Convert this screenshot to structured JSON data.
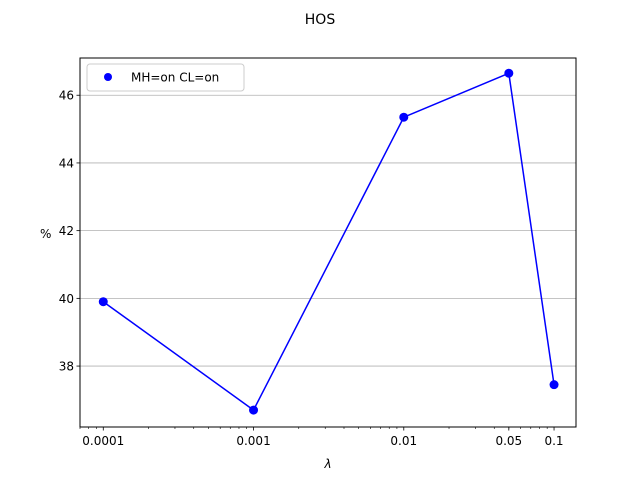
{
  "chart_data": {
    "type": "line",
    "title": "HOS",
    "xlabel": "λ",
    "ylabel": "%",
    "x_scale": "log",
    "xlim": [
      7e-05,
      0.14
    ],
    "ylim": [
      36.2,
      47.1
    ],
    "x_ticks": [
      {
        "value": 0.0001,
        "label": "0.0001"
      },
      {
        "value": 0.001,
        "label": "0.001"
      },
      {
        "value": 0.01,
        "label": "0.01"
      },
      {
        "value": 0.05,
        "label": "0.05"
      },
      {
        "value": 0.1,
        "label": "0.1"
      }
    ],
    "y_ticks": [
      {
        "value": 38,
        "label": "38"
      },
      {
        "value": 40,
        "label": "40"
      },
      {
        "value": 42,
        "label": "42"
      },
      {
        "value": 44,
        "label": "44"
      },
      {
        "value": 46,
        "label": "46"
      }
    ],
    "grid": "y-major",
    "legend_position": "top-left",
    "series": [
      {
        "name": "MH=on CL=on",
        "color": "#0000ff",
        "marker": "circle",
        "x": [
          0.0001,
          0.001,
          0.01,
          0.05,
          0.1
        ],
        "y": [
          39.9,
          36.7,
          45.35,
          46.65,
          37.45
        ]
      }
    ]
  }
}
